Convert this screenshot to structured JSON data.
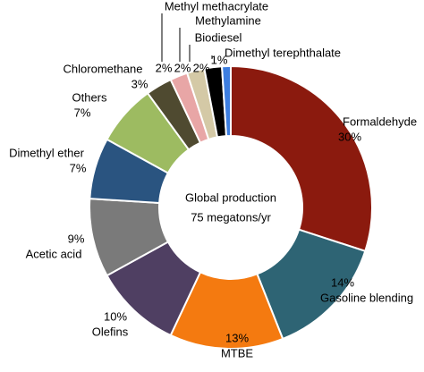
{
  "chart_data": {
    "type": "donut",
    "center_text": [
      "Global production",
      "75 megatons/yr"
    ],
    "categories": [
      "Formaldehyde",
      "Gasoline blending",
      "MTBE",
      "Olefins",
      "Acetic acid",
      "Dimethyl ether",
      "Others",
      "Chloromethane",
      "Methyl methacrylate",
      "Methylamine",
      "Biodiesel",
      "Dimethyl terephthalate"
    ],
    "values": [
      30,
      14,
      13,
      10,
      9,
      7,
      7,
      3,
      2,
      2,
      2,
      1
    ],
    "value_labels": [
      "30%",
      "14%",
      "13%",
      "10%",
      "9%",
      "7%",
      "7%",
      "3%",
      "2%",
      "2%",
      "2%",
      "1%"
    ],
    "colors": [
      "#8b1a0e",
      "#2e6474",
      "#f47a10",
      "#4f3f62",
      "#7a7a7a",
      "#2a5480",
      "#9dbb61",
      "#4f4a30",
      "#e8a6a6",
      "#d4c9a6",
      "#000000",
      "#3d7ee0"
    ]
  }
}
